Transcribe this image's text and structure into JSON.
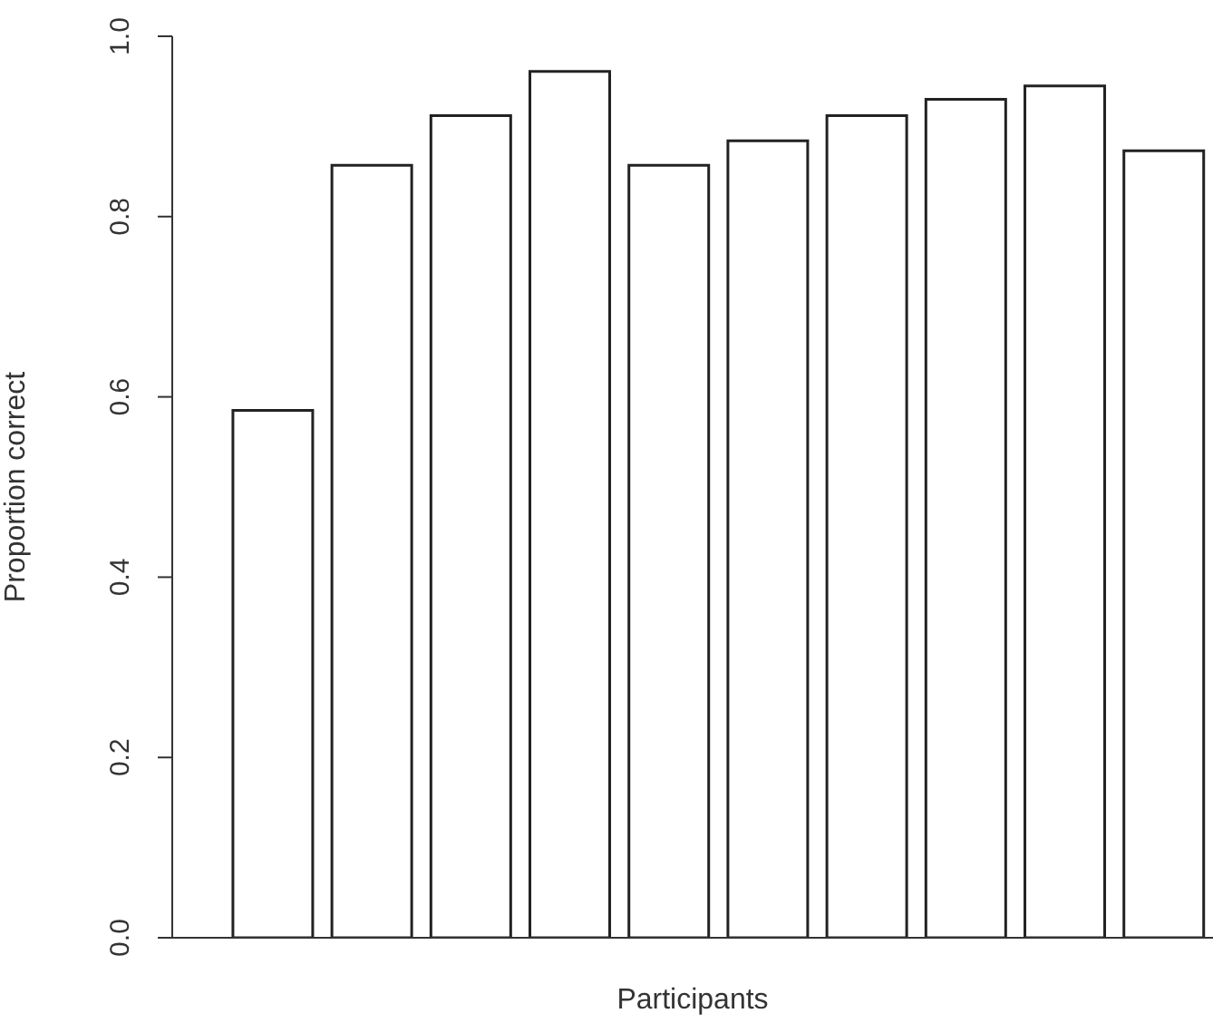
{
  "chart_data": {
    "type": "bar",
    "xlabel": "Participants",
    "ylabel": "Proportion correct",
    "categories": [
      null,
      null,
      null,
      null,
      null,
      null,
      null,
      null,
      null,
      null
    ],
    "values": [
      0.585,
      0.857,
      0.912,
      0.961,
      0.857,
      0.884,
      0.912,
      0.93,
      0.945,
      0.873
    ],
    "color": "#ffffff",
    "ylim": [
      0,
      1
    ],
    "yticks": [
      {
        "value": 0,
        "label": "0.0"
      },
      {
        "value": 0.2,
        "label": "0.2"
      },
      {
        "value": 0.4,
        "label": "0.4"
      },
      {
        "value": 0.6,
        "label": "0.6"
      },
      {
        "value": 0.8,
        "label": "0.8"
      },
      {
        "value": 1,
        "label": "1.0"
      }
    ],
    "grid": false,
    "legend": false
  }
}
